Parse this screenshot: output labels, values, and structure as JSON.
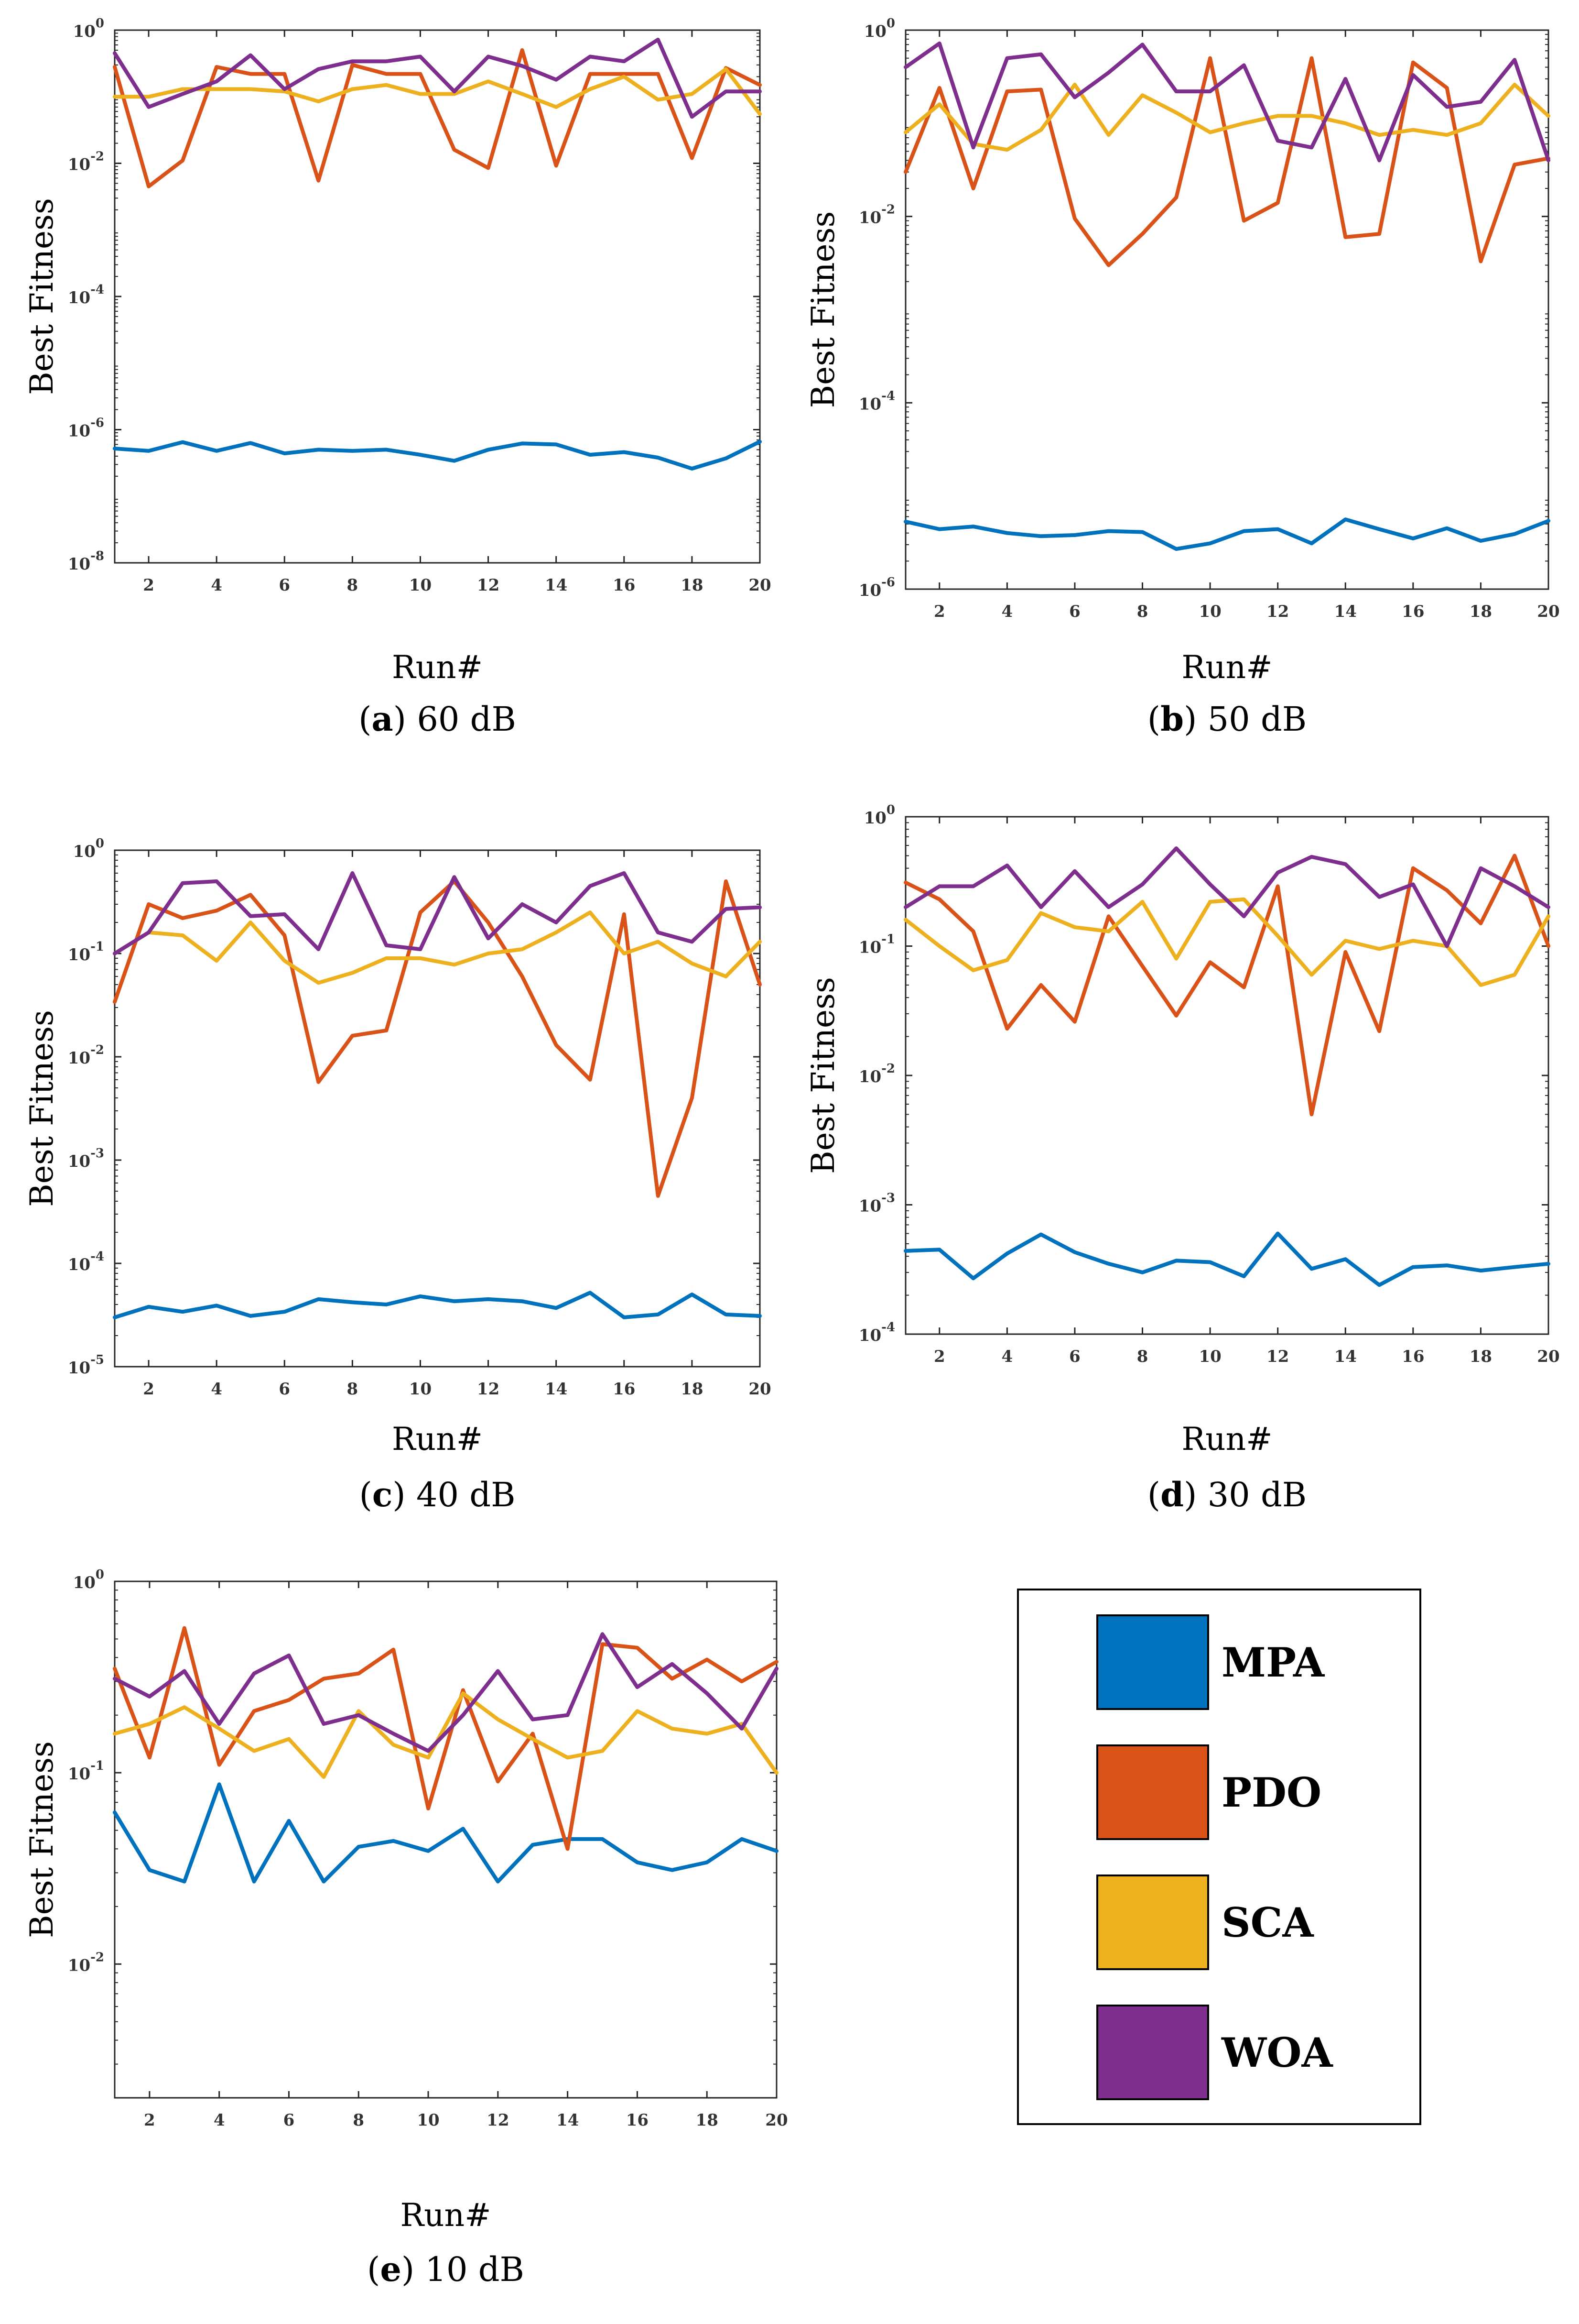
{
  "legend": [
    {
      "name": "MPA",
      "color": "#0072BD"
    },
    {
      "name": "PDO",
      "color": "#D95319"
    },
    {
      "name": "SCA",
      "color": "#EDB120"
    },
    {
      "name": "WOA",
      "color": "#7E2F8E"
    }
  ],
  "chart_data": [
    {
      "id": "a",
      "type": "line",
      "letter": "a",
      "caption_rest": " 60 dB",
      "xlabel": "Run#",
      "ylabel": "Best Fitness",
      "yscale": "log",
      "xlim": [
        1,
        20
      ],
      "ylim": [
        1e-08,
        1
      ],
      "xticks": [
        "2",
        "4",
        "6",
        "8",
        "10",
        "12",
        "14",
        "16",
        "18",
        "20"
      ],
      "yticks": [
        {
          "base": "10",
          "exp": "0",
          "value": 1
        },
        {
          "base": "10",
          "exp": "-2",
          "value": 0.01
        },
        {
          "base": "10",
          "exp": "-4",
          "value": 0.0001
        },
        {
          "base": "10",
          "exp": "-6",
          "value": 1e-06
        },
        {
          "base": "10",
          "exp": "-8",
          "value": 1e-08
        }
      ],
      "x": [
        1,
        2,
        3,
        4,
        5,
        6,
        7,
        8,
        9,
        10,
        11,
        12,
        13,
        14,
        15,
        16,
        17,
        18,
        19,
        20
      ],
      "series": [
        {
          "name": "MPA",
          "values": [
            5.2e-07,
            4.8e-07,
            6.5e-07,
            4.8e-07,
            6.3e-07,
            4.4e-07,
            5e-07,
            4.8e-07,
            5e-07,
            4.2e-07,
            3.4e-07,
            5e-07,
            6.2e-07,
            6e-07,
            4.2e-07,
            4.6e-07,
            3.8e-07,
            2.6e-07,
            3.7e-07,
            6.6e-07
          ]
        },
        {
          "name": "PDO",
          "values": [
            0.28,
            0.0045,
            0.011,
            0.28,
            0.22,
            0.22,
            0.0055,
            0.3,
            0.22,
            0.22,
            0.016,
            0.0085,
            0.5,
            0.0092,
            0.22,
            0.22,
            0.22,
            0.012,
            0.27,
            0.15
          ]
        },
        {
          "name": "SCA",
          "values": [
            0.1,
            0.1,
            0.13,
            0.13,
            0.13,
            0.12,
            0.085,
            0.13,
            0.15,
            0.11,
            0.11,
            0.17,
            0.11,
            0.07,
            0.13,
            0.2,
            0.09,
            0.11,
            0.26,
            0.055
          ]
        },
        {
          "name": "WOA",
          "values": [
            0.45,
            0.07,
            0.11,
            0.17,
            0.42,
            0.13,
            0.26,
            0.34,
            0.34,
            0.4,
            0.12,
            0.4,
            0.29,
            0.18,
            0.4,
            0.34,
            0.72,
            0.05,
            0.12,
            0.12
          ]
        }
      ]
    },
    {
      "id": "b",
      "type": "line",
      "letter": "b",
      "caption_rest": " 50 dB",
      "xlabel": "Run#",
      "ylabel": "Best Fitness",
      "yscale": "log",
      "xlim": [
        1,
        20
      ],
      "ylim": [
        1e-06,
        1
      ],
      "xticks": [
        "2",
        "4",
        "6",
        "8",
        "10",
        "12",
        "14",
        "16",
        "18",
        "20"
      ],
      "yticks": [
        {
          "base": "10",
          "exp": "0",
          "value": 1
        },
        {
          "base": "10",
          "exp": "-2",
          "value": 0.01
        },
        {
          "base": "10",
          "exp": "-4",
          "value": 0.0001
        },
        {
          "base": "10",
          "exp": "-6",
          "value": 1e-06
        }
      ],
      "x": [
        1,
        2,
        3,
        4,
        5,
        6,
        7,
        8,
        9,
        10,
        11,
        12,
        13,
        14,
        15,
        16,
        17,
        18,
        19,
        20
      ],
      "series": [
        {
          "name": "MPA",
          "values": [
            5.3e-06,
            4.4e-06,
            4.7e-06,
            4e-06,
            3.7e-06,
            3.8e-06,
            4.2e-06,
            4.1e-06,
            2.7e-06,
            3.1e-06,
            4.2e-06,
            4.4e-06,
            3.1e-06,
            5.6e-06,
            4.4e-06,
            3.5e-06,
            4.5e-06,
            3.3e-06,
            3.9e-06,
            5.4e-06
          ]
        },
        {
          "name": "PDO",
          "values": [
            0.03,
            0.24,
            0.02,
            0.22,
            0.23,
            0.0095,
            0.003,
            0.0065,
            0.016,
            0.5,
            0.009,
            0.014,
            0.5,
            0.006,
            0.0065,
            0.45,
            0.24,
            0.0033,
            0.036,
            0.042
          ]
        },
        {
          "name": "SCA",
          "values": [
            0.08,
            0.16,
            0.06,
            0.052,
            0.085,
            0.26,
            0.075,
            0.2,
            0.13,
            0.08,
            0.1,
            0.12,
            0.12,
            0.1,
            0.075,
            0.085,
            0.075,
            0.1,
            0.26,
            0.12
          ]
        },
        {
          "name": "WOA",
          "values": [
            0.4,
            0.72,
            0.055,
            0.5,
            0.55,
            0.19,
            0.35,
            0.7,
            0.22,
            0.22,
            0.42,
            0.065,
            0.055,
            0.3,
            0.04,
            0.33,
            0.15,
            0.17,
            0.48,
            0.04
          ]
        }
      ]
    },
    {
      "id": "c",
      "type": "line",
      "letter": "c",
      "caption_rest": " 40 dB",
      "xlabel": "Run#",
      "ylabel": "Best Fitness",
      "yscale": "log",
      "xlim": [
        1,
        20
      ],
      "ylim": [
        1e-05,
        1
      ],
      "xticks": [
        "2",
        "4",
        "6",
        "8",
        "10",
        "12",
        "14",
        "16",
        "18",
        "20"
      ],
      "yticks": [
        {
          "base": "10",
          "exp": "0",
          "value": 1
        },
        {
          "base": "10",
          "exp": "-1",
          "value": 0.1
        },
        {
          "base": "10",
          "exp": "-2",
          "value": 0.01
        },
        {
          "base": "10",
          "exp": "-3",
          "value": 0.001
        },
        {
          "base": "10",
          "exp": "-4",
          "value": 0.0001
        },
        {
          "base": "10",
          "exp": "-5",
          "value": 1e-05
        }
      ],
      "x": [
        1,
        2,
        3,
        4,
        5,
        6,
        7,
        8,
        9,
        10,
        11,
        12,
        13,
        14,
        15,
        16,
        17,
        18,
        19,
        20
      ],
      "series": [
        {
          "name": "MPA",
          "values": [
            3e-05,
            3.8e-05,
            3.4e-05,
            3.9e-05,
            3.1e-05,
            3.4e-05,
            4.5e-05,
            4.2e-05,
            4e-05,
            4.8e-05,
            4.3e-05,
            4.5e-05,
            4.3e-05,
            3.7e-05,
            5.2e-05,
            3e-05,
            3.2e-05,
            5e-05,
            3.2e-05,
            3.1e-05
          ]
        },
        {
          "name": "PDO",
          "values": [
            0.034,
            0.3,
            0.22,
            0.26,
            0.37,
            0.15,
            0.0057,
            0.016,
            0.018,
            0.25,
            0.5,
            0.2,
            0.06,
            0.013,
            0.006,
            0.24,
            0.00045,
            0.004,
            0.5,
            0.05
          ]
        },
        {
          "name": "SCA",
          "values": [
            0.1,
            0.16,
            0.15,
            0.085,
            0.2,
            0.085,
            0.052,
            0.065,
            0.09,
            0.09,
            0.078,
            0.1,
            0.11,
            0.16,
            0.25,
            0.1,
            0.13,
            0.08,
            0.06,
            0.13
          ]
        },
        {
          "name": "WOA",
          "values": [
            0.1,
            0.16,
            0.48,
            0.5,
            0.23,
            0.24,
            0.11,
            0.6,
            0.12,
            0.11,
            0.55,
            0.14,
            0.3,
            0.2,
            0.45,
            0.6,
            0.16,
            0.13,
            0.27,
            0.28
          ]
        }
      ]
    },
    {
      "id": "d",
      "type": "line",
      "letter": "d",
      "caption_rest": " 30 dB",
      "xlabel": "Run#",
      "ylabel": "Best Fitness",
      "yscale": "log",
      "xlim": [
        1,
        20
      ],
      "ylim": [
        0.0001,
        1
      ],
      "xticks": [
        "2",
        "4",
        "6",
        "8",
        "10",
        "12",
        "14",
        "16",
        "18",
        "20"
      ],
      "yticks": [
        {
          "base": "10",
          "exp": "0",
          "value": 1
        },
        {
          "base": "10",
          "exp": "-1",
          "value": 0.1
        },
        {
          "base": "10",
          "exp": "-2",
          "value": 0.01
        },
        {
          "base": "10",
          "exp": "-3",
          "value": 0.001
        },
        {
          "base": "10",
          "exp": "-4",
          "value": 0.0001
        }
      ],
      "x": [
        1,
        2,
        3,
        4,
        5,
        6,
        7,
        8,
        9,
        10,
        11,
        12,
        13,
        14,
        15,
        16,
        17,
        18,
        19,
        20
      ],
      "series": [
        {
          "name": "MPA",
          "values": [
            0.00044,
            0.00045,
            0.00027,
            0.00042,
            0.00059,
            0.00043,
            0.00035,
            0.0003,
            0.00037,
            0.00036,
            0.00028,
            0.0006,
            0.00032,
            0.00038,
            0.00024,
            0.00033,
            0.00034,
            0.00031,
            0.00033,
            0.00035
          ]
        },
        {
          "name": "PDO",
          "values": [
            0.31,
            0.23,
            0.13,
            0.023,
            0.05,
            0.026,
            0.17,
            0.07,
            0.029,
            0.075,
            0.048,
            0.29,
            0.005,
            0.09,
            0.022,
            0.4,
            0.27,
            0.15,
            0.5,
            0.1
          ]
        },
        {
          "name": "SCA",
          "values": [
            0.16,
            0.1,
            0.065,
            0.078,
            0.18,
            0.14,
            0.13,
            0.22,
            0.08,
            0.22,
            0.23,
            0.12,
            0.06,
            0.11,
            0.095,
            0.11,
            0.1,
            0.05,
            0.06,
            0.17
          ]
        },
        {
          "name": "WOA",
          "values": [
            0.2,
            0.29,
            0.29,
            0.42,
            0.2,
            0.38,
            0.2,
            0.3,
            0.57,
            0.3,
            0.17,
            0.37,
            0.49,
            0.43,
            0.24,
            0.3,
            0.1,
            0.4,
            0.29,
            0.2
          ]
        }
      ]
    },
    {
      "id": "e",
      "type": "line",
      "letter": "e",
      "caption_rest": " 10 dB",
      "xlabel": "Run#",
      "ylabel": "Best Fitness",
      "yscale": "log",
      "xlim": [
        1,
        20
      ],
      "ylim": [
        0.002,
        1
      ],
      "xticks": [
        "2",
        "4",
        "6",
        "8",
        "10",
        "12",
        "14",
        "16",
        "18",
        "20"
      ],
      "yticks": [
        {
          "base": "10",
          "exp": "0",
          "value": 1
        },
        {
          "base": "10",
          "exp": "-1",
          "value": 0.1
        },
        {
          "base": "10",
          "exp": "-2",
          "value": 0.01
        }
      ],
      "x": [
        1,
        2,
        3,
        4,
        5,
        6,
        7,
        8,
        9,
        10,
        11,
        12,
        13,
        14,
        15,
        16,
        17,
        18,
        19,
        20
      ],
      "series": [
        {
          "name": "MPA",
          "values": [
            0.062,
            0.031,
            0.027,
            0.087,
            0.027,
            0.056,
            0.027,
            0.041,
            0.044,
            0.039,
            0.051,
            0.027,
            0.042,
            0.045,
            0.045,
            0.034,
            0.031,
            0.034,
            0.045,
            0.039
          ]
        },
        {
          "name": "PDO",
          "values": [
            0.35,
            0.12,
            0.57,
            0.11,
            0.21,
            0.24,
            0.31,
            0.33,
            0.44,
            0.065,
            0.27,
            0.09,
            0.16,
            0.04,
            0.47,
            0.45,
            0.31,
            0.39,
            0.3,
            0.38
          ]
        },
        {
          "name": "SCA",
          "values": [
            0.16,
            0.18,
            0.22,
            0.17,
            0.13,
            0.15,
            0.095,
            0.21,
            0.14,
            0.12,
            0.26,
            0.19,
            0.15,
            0.12,
            0.13,
            0.21,
            0.17,
            0.16,
            0.18,
            0.1
          ]
        },
        {
          "name": "WOA",
          "values": [
            0.31,
            0.25,
            0.34,
            0.18,
            0.33,
            0.41,
            0.18,
            0.2,
            0.16,
            0.13,
            0.2,
            0.34,
            0.19,
            0.2,
            0.53,
            0.28,
            0.37,
            0.26,
            0.17,
            0.35
          ]
        }
      ]
    }
  ]
}
